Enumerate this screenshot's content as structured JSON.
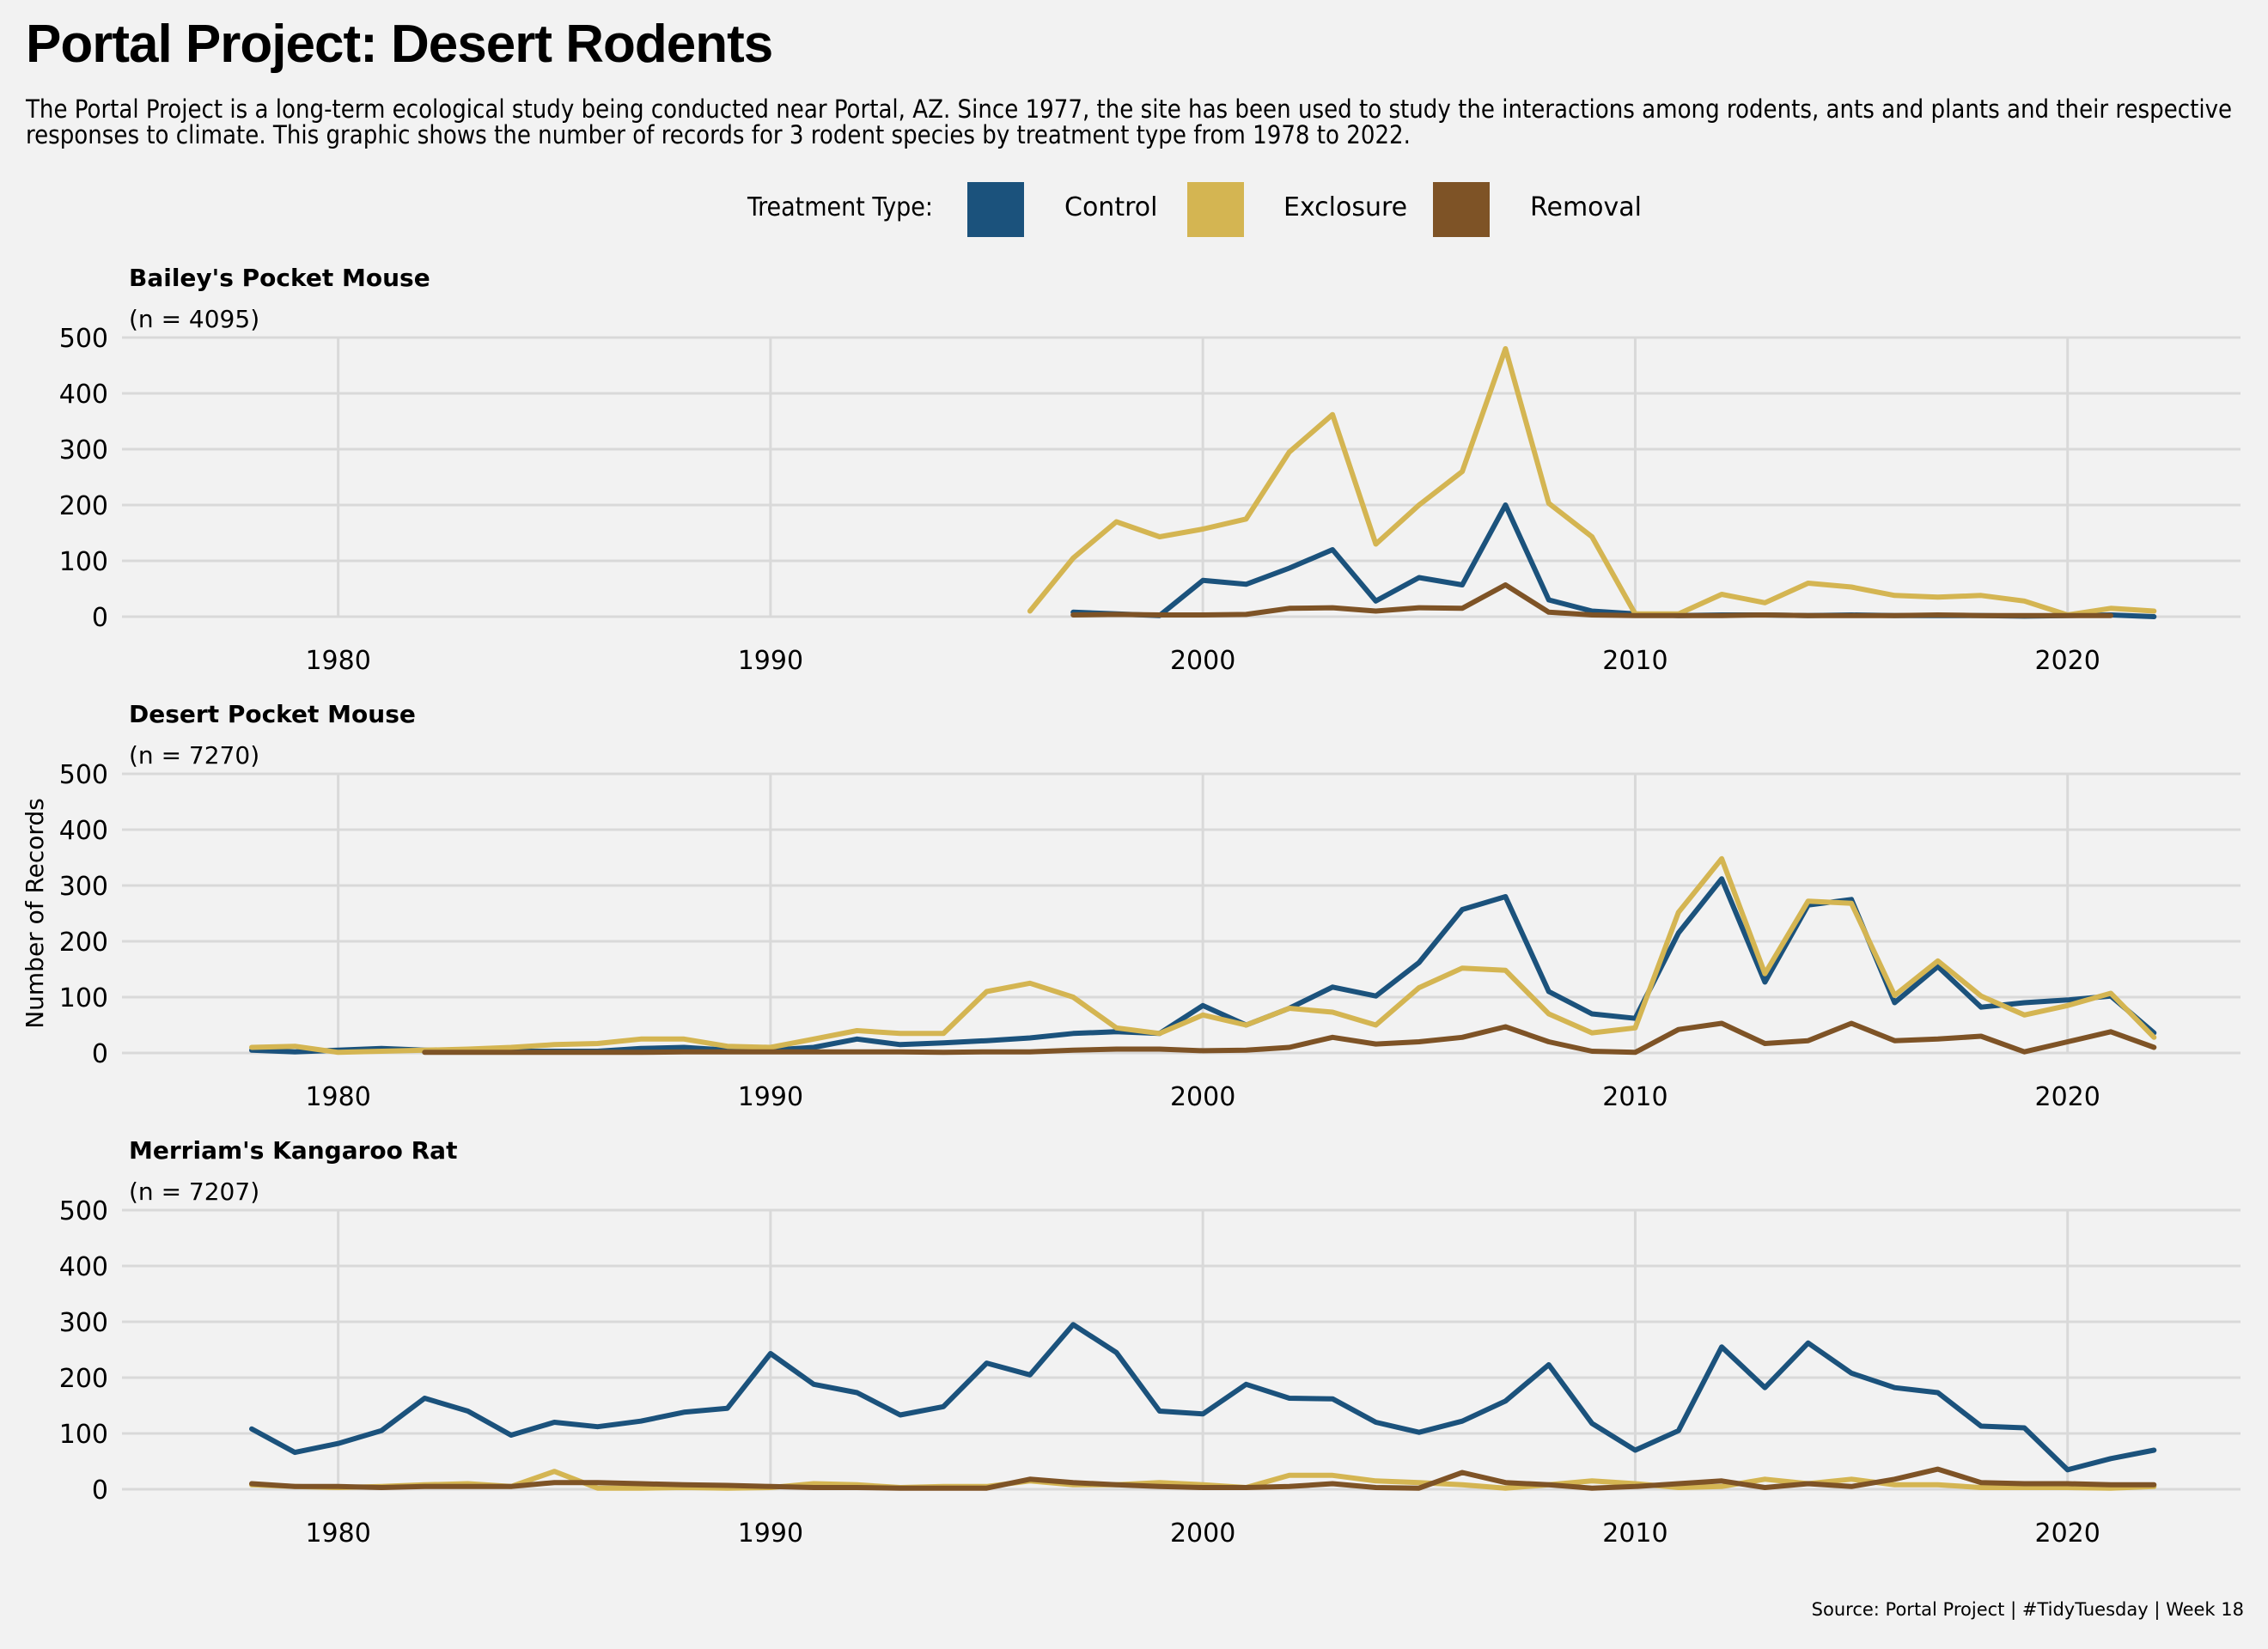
{
  "title": "Portal Project: Desert Rodents",
  "subtitle": "The Portal Project is a long-term ecological study being conducted near Portal, AZ. Since 1977, the site has been used to study the interactions among rodents, ants and plants and their respective responses to climate. This graphic shows the number of records for 3 rodent species by treatment type from 1978 to 2022.",
  "caption": "Source: Portal Project | #TidyTuesday | Week 18",
  "legend": {
    "title": "Treatment Type:",
    "items": [
      {
        "label": "Control",
        "color": "#1b527c"
      },
      {
        "label": "Exclosure",
        "color": "#d4b552"
      },
      {
        "label": "Removal",
        "color": "#7e5326"
      }
    ]
  },
  "colors": {
    "background": "#f2f2f2",
    "grid": "#d9d9d9",
    "control": "#1b527c",
    "exclosure": "#d4b552",
    "removal": "#7e5326"
  },
  "chart_data": [
    {
      "type": "line",
      "title": "Bailey's Pocket Mouse",
      "subtitle": "(n = 4095)",
      "xlabel": "",
      "ylabel": "",
      "xlim": [
        1975,
        2024
      ],
      "ylim": [
        0,
        500
      ],
      "x_ticks": [
        1980,
        1990,
        2000,
        2010,
        2020
      ],
      "y_ticks": [
        0,
        100,
        200,
        300,
        400,
        500
      ],
      "grid": true,
      "series": [
        {
          "name": "Control",
          "color": "#1b527c",
          "x": [
            1997,
            1998,
            1999,
            2000,
            2001,
            2002,
            2003,
            2004,
            2005,
            2006,
            2007,
            2008,
            2009,
            2010,
            2011,
            2012,
            2013,
            2014,
            2015,
            2016,
            2017,
            2018,
            2019,
            2020,
            2021,
            2022
          ],
          "y": [
            8,
            5,
            2,
            65,
            58,
            87,
            120,
            28,
            70,
            57,
            200,
            30,
            10,
            5,
            2,
            3,
            3,
            2,
            3,
            2,
            2,
            2,
            1,
            2,
            3,
            0
          ]
        },
        {
          "name": "Exclosure",
          "color": "#d4b552",
          "x": [
            1996,
            1997,
            1998,
            1999,
            2000,
            2001,
            2002,
            2003,
            2004,
            2005,
            2006,
            2007,
            2008,
            2009,
            2010,
            2011,
            2012,
            2013,
            2014,
            2015,
            2016,
            2017,
            2018,
            2019,
            2020,
            2021,
            2022
          ],
          "y": [
            10,
            105,
            170,
            143,
            157,
            175,
            295,
            362,
            130,
            200,
            260,
            480,
            203,
            143,
            5,
            5,
            40,
            25,
            60,
            53,
            38,
            35,
            38,
            28,
            3,
            15,
            10
          ]
        },
        {
          "name": "Removal",
          "color": "#7e5326",
          "x": [
            1997,
            1998,
            1999,
            2000,
            2001,
            2002,
            2003,
            2004,
            2005,
            2006,
            2007,
            2008,
            2009,
            2010,
            2011,
            2012,
            2013,
            2014,
            2015,
            2016,
            2017,
            2018,
            2019,
            2020,
            2021
          ],
          "y": [
            3,
            4,
            3,
            3,
            4,
            15,
            16,
            10,
            16,
            15,
            57,
            8,
            3,
            2,
            2,
            2,
            3,
            2,
            2,
            2,
            3,
            2,
            2,
            2,
            2
          ]
        }
      ]
    },
    {
      "type": "line",
      "title": "Desert Pocket Mouse",
      "subtitle": "(n = 7270)",
      "xlabel": "",
      "ylabel": "Number of Records",
      "xlim": [
        1975,
        2024
      ],
      "ylim": [
        0,
        500
      ],
      "x_ticks": [
        1980,
        1990,
        2000,
        2010,
        2020
      ],
      "y_ticks": [
        0,
        100,
        200,
        300,
        400,
        500
      ],
      "grid": true,
      "series": [
        {
          "name": "Control",
          "color": "#1b527c",
          "x": [
            1978,
            1979,
            1980,
            1981,
            1982,
            1983,
            1984,
            1985,
            1986,
            1987,
            1988,
            1989,
            1990,
            1991,
            1992,
            1993,
            1994,
            1995,
            1996,
            1997,
            1998,
            1999,
            2000,
            2001,
            2002,
            2003,
            2004,
            2005,
            2006,
            2007,
            2008,
            2009,
            2010,
            2011,
            2012,
            2013,
            2014,
            2015,
            2016,
            2017,
            2018,
            2019,
            2020,
            2021,
            2022
          ],
          "y": [
            5,
            2,
            5,
            8,
            5,
            3,
            3,
            3,
            3,
            8,
            10,
            5,
            5,
            10,
            25,
            15,
            18,
            22,
            27,
            35,
            38,
            35,
            85,
            50,
            80,
            118,
            102,
            162,
            257,
            280,
            110,
            70,
            62,
            215,
            312,
            127,
            265,
            275,
            90,
            155,
            82,
            90,
            95,
            102,
            36
          ]
        },
        {
          "name": "Exclosure",
          "color": "#d4b552",
          "x": [
            1978,
            1979,
            1980,
            1981,
            1982,
            1983,
            1984,
            1985,
            1986,
            1987,
            1988,
            1989,
            1990,
            1991,
            1992,
            1993,
            1994,
            1995,
            1996,
            1997,
            1998,
            1999,
            2000,
            2001,
            2002,
            2003,
            2004,
            2005,
            2006,
            2007,
            2008,
            2009,
            2010,
            2011,
            2012,
            2013,
            2014,
            2015,
            2016,
            2017,
            2018,
            2019,
            2020,
            2021,
            2022
          ],
          "y": [
            10,
            12,
            1,
            3,
            5,
            7,
            10,
            15,
            17,
            25,
            25,
            12,
            10,
            25,
            40,
            35,
            35,
            110,
            125,
            100,
            45,
            35,
            68,
            50,
            80,
            73,
            50,
            117,
            152,
            148,
            70,
            36,
            45,
            252,
            348,
            142,
            272,
            268,
            103,
            165,
            102,
            68,
            85,
            107,
            28
          ]
        },
        {
          "name": "Removal",
          "color": "#7e5326",
          "x": [
            1982,
            1983,
            1984,
            1985,
            1986,
            1987,
            1988,
            1989,
            1990,
            1991,
            1992,
            1993,
            1994,
            1995,
            1996,
            1997,
            1998,
            1999,
            2000,
            2001,
            2002,
            2003,
            2004,
            2005,
            2006,
            2007,
            2008,
            2009,
            2010,
            2011,
            2012,
            2013,
            2014,
            2015,
            2016,
            2017,
            2018,
            2019,
            2020,
            2021,
            2022
          ],
          "y": [
            1,
            1,
            1,
            1,
            1,
            1,
            2,
            2,
            2,
            2,
            2,
            2,
            1,
            2,
            2,
            5,
            7,
            7,
            4,
            5,
            10,
            28,
            16,
            20,
            28,
            47,
            20,
            3,
            1,
            42,
            53,
            17,
            22,
            53,
            22,
            25,
            30,
            2,
            20,
            38,
            10
          ]
        }
      ]
    },
    {
      "type": "line",
      "title": "Merriam's Kangaroo Rat",
      "subtitle": "(n = 7207)",
      "xlabel": "",
      "ylabel": "",
      "xlim": [
        1975,
        2024
      ],
      "ylim": [
        0,
        500
      ],
      "x_ticks": [
        1980,
        1990,
        2000,
        2010,
        2020
      ],
      "y_ticks": [
        0,
        100,
        200,
        300,
        400,
        500
      ],
      "grid": true,
      "series": [
        {
          "name": "Control",
          "color": "#1b527c",
          "x": [
            1978,
            1979,
            1980,
            1981,
            1982,
            1983,
            1984,
            1985,
            1986,
            1987,
            1988,
            1989,
            1990,
            1991,
            1992,
            1993,
            1994,
            1995,
            1996,
            1997,
            1998,
            1999,
            2000,
            2001,
            2002,
            2003,
            2004,
            2005,
            2006,
            2007,
            2008,
            2009,
            2010,
            2011,
            2012,
            2013,
            2014,
            2015,
            2016,
            2017,
            2018,
            2019,
            2020,
            2021,
            2022
          ],
          "y": [
            108,
            66,
            82,
            105,
            163,
            140,
            97,
            120,
            112,
            122,
            138,
            145,
            243,
            188,
            173,
            133,
            148,
            226,
            205,
            295,
            245,
            140,
            135,
            188,
            163,
            162,
            120,
            102,
            122,
            158,
            223,
            118,
            70,
            105,
            255,
            182,
            262,
            208,
            182,
            173,
            113,
            110,
            35,
            55,
            70
          ]
        },
        {
          "name": "Exclosure",
          "color": "#d4b552",
          "x": [
            1978,
            1979,
            1980,
            1981,
            1982,
            1983,
            1984,
            1985,
            1986,
            1987,
            1988,
            1989,
            1990,
            1991,
            1992,
            1993,
            1994,
            1995,
            1996,
            1997,
            1998,
            1999,
            2000,
            2001,
            2002,
            2003,
            2004,
            2005,
            2006,
            2007,
            2008,
            2009,
            2010,
            2011,
            2012,
            2013,
            2014,
            2015,
            2016,
            2017,
            2018,
            2019,
            2020,
            2021,
            2022
          ],
          "y": [
            8,
            5,
            3,
            5,
            8,
            10,
            5,
            32,
            2,
            2,
            3,
            2,
            3,
            10,
            8,
            3,
            5,
            5,
            15,
            8,
            8,
            12,
            8,
            3,
            25,
            25,
            15,
            12,
            8,
            2,
            8,
            15,
            10,
            3,
            5,
            18,
            10,
            18,
            8,
            8,
            3,
            3,
            3,
            2,
            5
          ]
        },
        {
          "name": "Removal",
          "color": "#7e5326",
          "x": [
            1978,
            1979,
            1980,
            1981,
            1982,
            1983,
            1984,
            1985,
            1986,
            1987,
            1988,
            1989,
            1990,
            1991,
            1992,
            1993,
            1994,
            1995,
            1996,
            1997,
            1998,
            1999,
            2000,
            2001,
            2002,
            2003,
            2004,
            2005,
            2006,
            2007,
            2008,
            2009,
            2010,
            2011,
            2012,
            2013,
            2014,
            2015,
            2016,
            2017,
            2018,
            2019,
            2020,
            2021,
            2022
          ],
          "y": [
            10,
            5,
            5,
            3,
            5,
            5,
            5,
            12,
            12,
            10,
            8,
            7,
            5,
            3,
            3,
            2,
            2,
            2,
            18,
            12,
            8,
            5,
            3,
            3,
            5,
            10,
            3,
            2,
            30,
            12,
            8,
            2,
            5,
            10,
            15,
            3,
            10,
            5,
            18,
            36,
            12,
            10,
            10,
            8,
            8
          ]
        }
      ]
    }
  ]
}
